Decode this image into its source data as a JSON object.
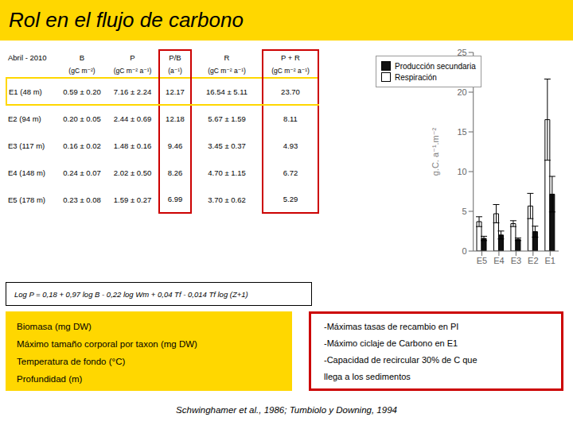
{
  "chart_data": {
    "type": "bar",
    "title": "Rol en el flujo de carbono",
    "categories": [
      "E5",
      "E4",
      "E3",
      "E2",
      "E1"
    ],
    "series": [
      {
        "name": "Respiración",
        "color": "#FFFFFF",
        "values": [
          3.7,
          4.7,
          3.45,
          5.67,
          16.54
        ],
        "errors": [
          0.62,
          1.15,
          0.37,
          1.59,
          5.11
        ]
      },
      {
        "name": "Producción secundaria",
        "color": "#111111",
        "values": [
          1.59,
          2.02,
          1.48,
          2.44,
          7.16
        ],
        "errors": [
          0.27,
          0.5,
          0.16,
          0.69,
          2.24
        ]
      }
    ],
    "edge_color": "#000000",
    "ylabel": "g.C. a⁻¹.m⁻²",
    "ylim": [
      0,
      25
    ],
    "yticks": [
      0,
      5,
      10,
      15,
      20,
      25
    ],
    "grid": false,
    "legend": "upper left",
    "annotations": {
      "table": {
        "header": [
          "Abril - 2010",
          "B",
          "P",
          "P/B",
          "R",
          "P + R"
        ],
        "units": [
          "",
          "(gC m⁻²)",
          "(gC m⁻² a⁻¹)",
          "(a⁻¹)",
          "(gC m⁻² a⁻¹)",
          "(gC m⁻² a⁻¹)"
        ],
        "rows": [
          [
            "E1 (48 m)",
            "0.59 ± 0.20",
            "7.16 ± 2.24",
            "12.17",
            "16.54 ± 5.11",
            "23.70"
          ],
          [
            "E2 (94 m)",
            "0.20 ± 0.05",
            "2.44 ± 0.69",
            "12.18",
            "5.67 ± 1.59",
            "8.11"
          ],
          [
            "E3 (117 m)",
            "0.16 ± 0.02",
            "1.48 ± 0.16",
            "9.46",
            "3.45 ± 0.37",
            "4.93"
          ],
          [
            "E4 (148 m)",
            "0.24 ± 0.07",
            "2.02 ± 0.50",
            "8.26",
            "4.70 ± 1.15",
            "6.72"
          ],
          [
            "E5 (178 m)",
            "0.23 ± 0.08",
            "1.59 ± 0.27",
            "6.99",
            "3.70 ± 0.62",
            "5.29"
          ]
        ],
        "highlight_row_color": "#FFD700",
        "highlight_col_color": "#CC0000"
      },
      "formula": "Log P = 0,18 + 0,97 log B - 0,22 log Wm + 0,04 Tf - 0,014 Tf log (Z+1)",
      "left_box": {
        "lines": [
          "Biomasa (mg DW)",
          "Máximo tamaño corporal por taxon (mg DW)",
          "Temperatura de fondo (°C)",
          "Profundidad (m)"
        ],
        "color": "#FFD700"
      },
      "right_box": {
        "lines": [
          "-Máximas tasas de recambio en PI",
          "-Máximo ciclaje de Carbono en E1",
          "-Capacidad de recircular 30% de C que",
          "llega a los sedimentos"
        ],
        "color": "#CC0000"
      },
      "citation": [
        "Schwinghamer et al., 1986; ",
        "Tumbiolo y Downing, 1994"
      ]
    }
  }
}
